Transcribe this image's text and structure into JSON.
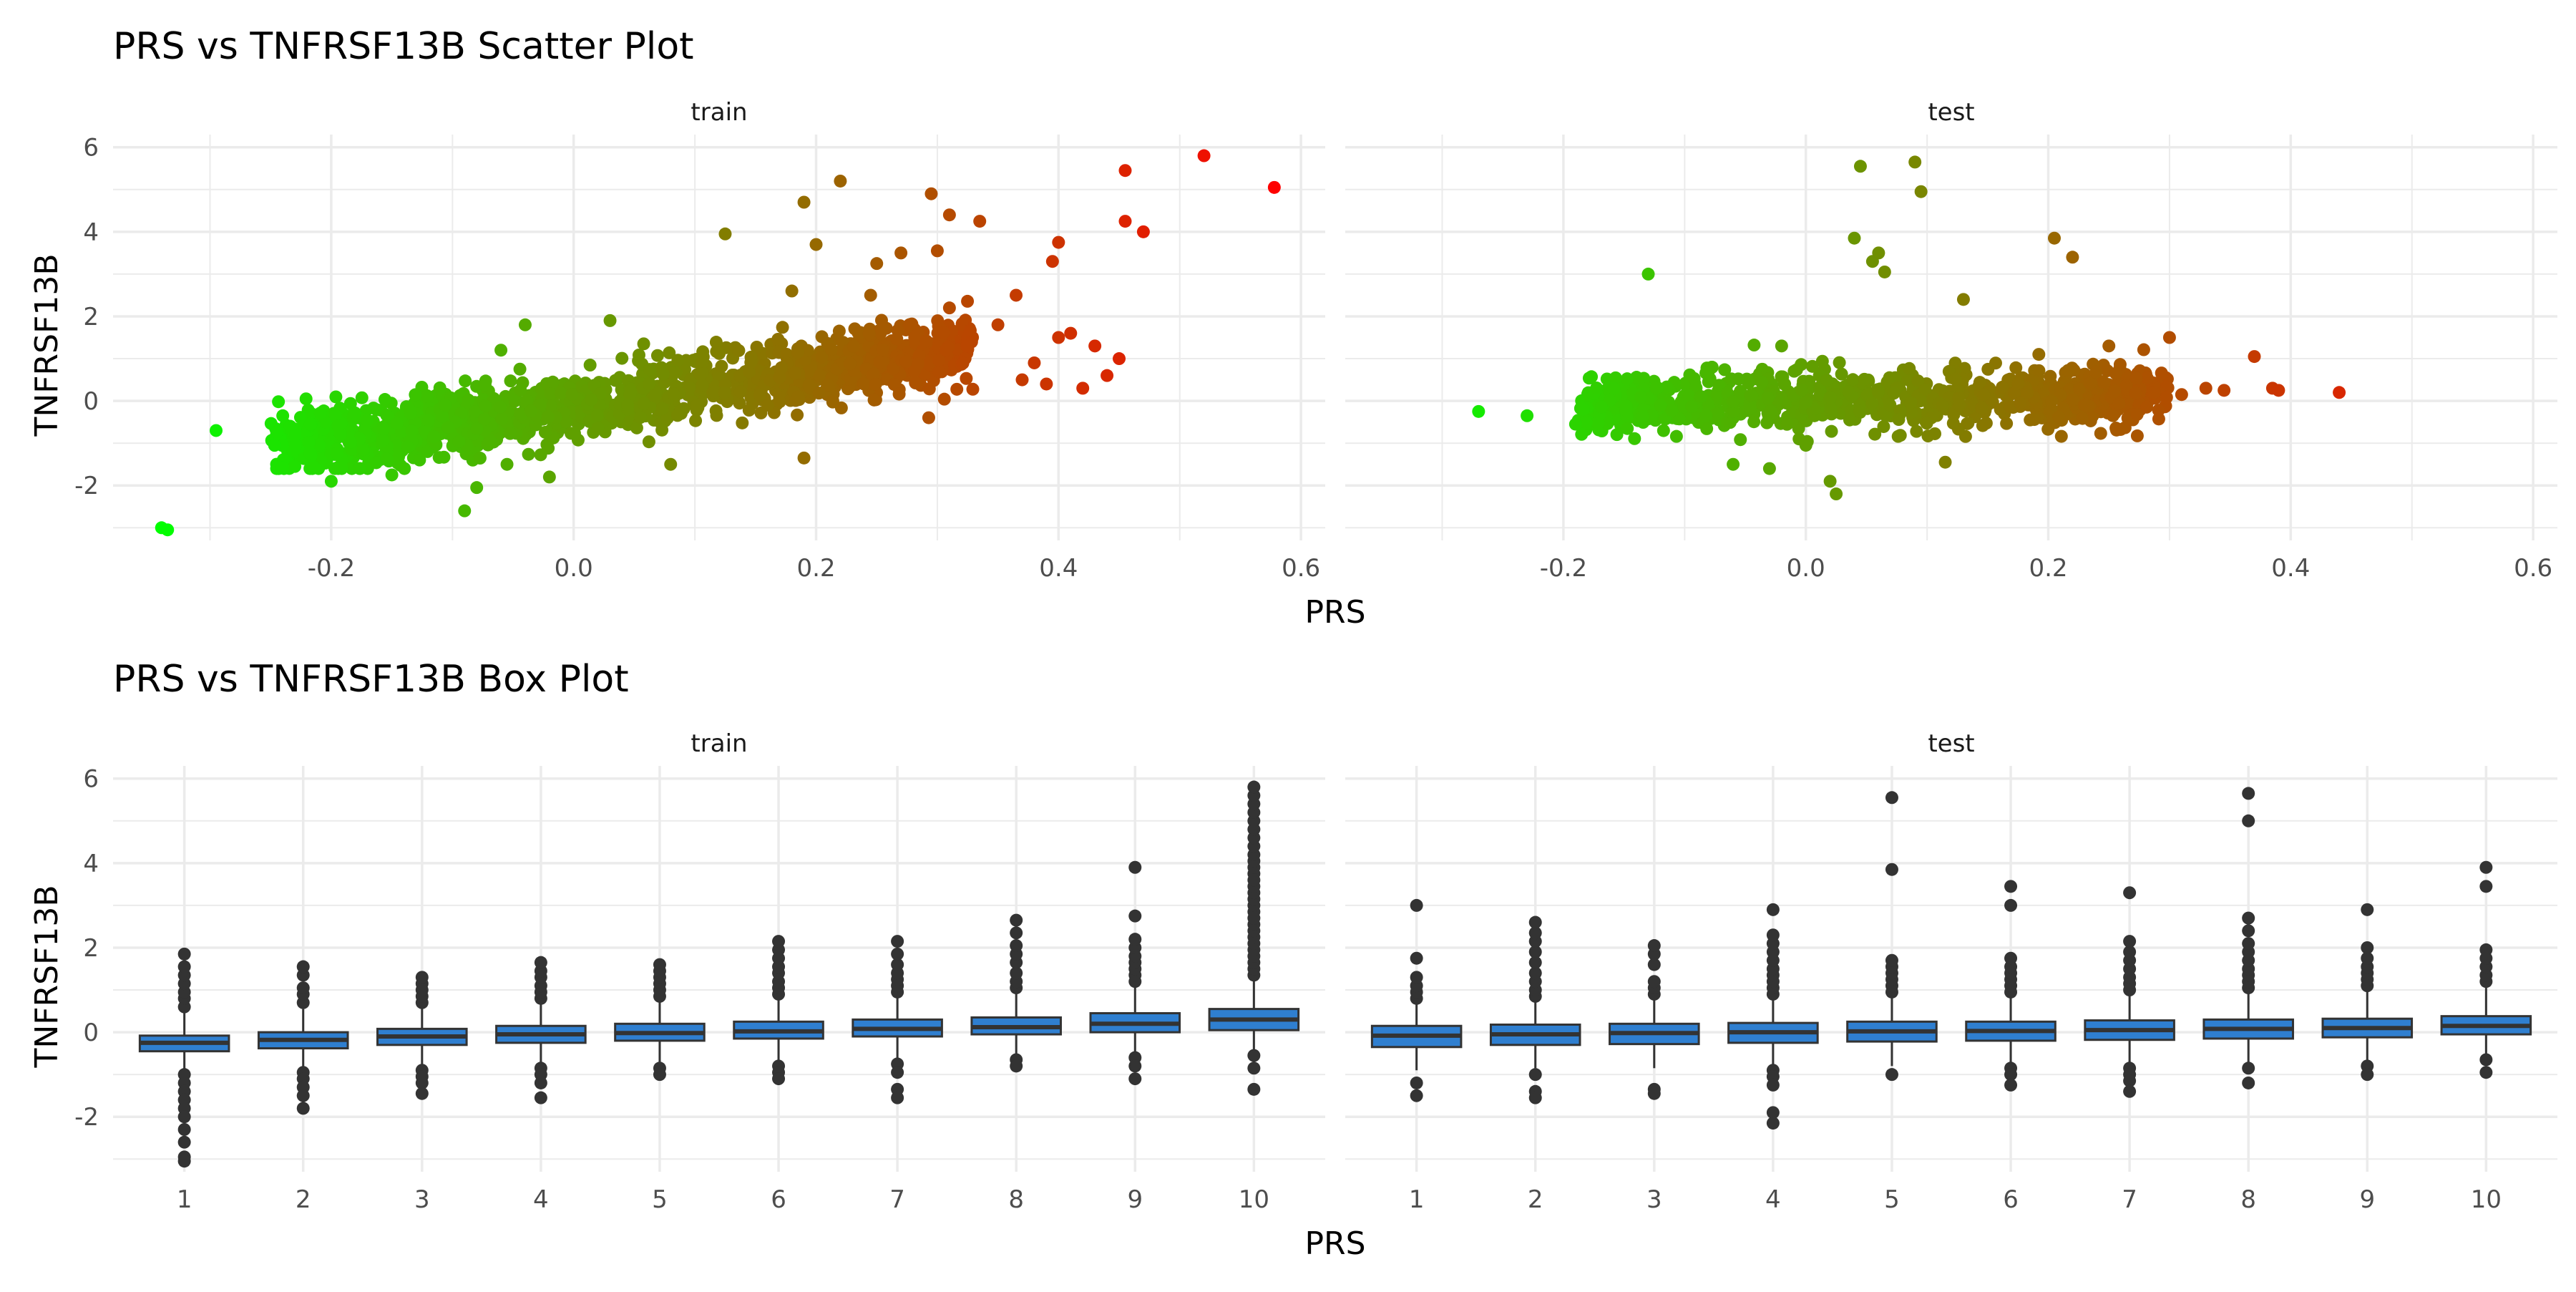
{
  "colors": {
    "panel_grid": "#ebebeb",
    "box_fill": "#2f7fd0",
    "box_line": "#333333",
    "outlier": "#333333",
    "title": "#000000",
    "axis_text": "#4d4d4d",
    "gradient_low": "#00ff00",
    "gradient_high": "#ff0000"
  },
  "chart_data": [
    {
      "type": "scatter",
      "title": "PRS vs TNFRSF13B Scatter Plot",
      "xlabel": "PRS",
      "ylabel": "TNFRSF13B",
      "color_by": "PRS",
      "color_scale": [
        "#00ff00",
        "#ff0000"
      ],
      "xlim": [
        -0.38,
        0.62
      ],
      "ylim": [
        -3.3,
        6.3
      ],
      "x_ticks": [
        -0.2,
        0.0,
        0.2,
        0.4,
        0.6
      ],
      "x_tick_labels": [
        "-0.2",
        "0.0",
        "0.2",
        "0.4",
        "0.6"
      ],
      "y_ticks": [
        -2,
        0,
        2,
        4,
        6
      ],
      "y_tick_labels": [
        "-2",
        "0",
        "2",
        "4",
        "6"
      ],
      "grid": true,
      "legend": "none",
      "facets": [
        {
          "name": "train",
          "cloud": {
            "x_range": [
              -0.25,
              0.33
            ],
            "slope": 4.0,
            "intercept": -0.1,
            "spread": 0.55,
            "n": 1400
          },
          "points": [
            [
              -0.34,
              -3.0
            ],
            [
              -0.335,
              -3.05
            ],
            [
              -0.295,
              -0.7
            ],
            [
              -0.24,
              -0.35
            ],
            [
              -0.23,
              -0.8
            ],
            [
              -0.23,
              -1.55
            ],
            [
              -0.2,
              -1.9
            ],
            [
              -0.15,
              -1.75
            ],
            [
              -0.09,
              -2.6
            ],
            [
              -0.08,
              -2.05
            ],
            [
              -0.055,
              -1.5
            ],
            [
              -0.02,
              -1.8
            ],
            [
              -0.06,
              1.2
            ],
            [
              -0.04,
              1.8
            ],
            [
              0.03,
              1.9
            ],
            [
              0.08,
              -1.5
            ],
            [
              0.19,
              -1.35
            ],
            [
              0.125,
              3.95
            ],
            [
              0.19,
              4.7
            ],
            [
              0.22,
              5.2
            ],
            [
              0.2,
              3.7
            ],
            [
              0.18,
              2.6
            ],
            [
              0.245,
              2.5
            ],
            [
              0.25,
              3.25
            ],
            [
              0.27,
              3.5
            ],
            [
              0.295,
              4.9
            ],
            [
              0.31,
              4.4
            ],
            [
              0.335,
              4.25
            ],
            [
              0.3,
              3.55
            ],
            [
              0.31,
              2.2
            ],
            [
              0.365,
              2.5
            ],
            [
              0.35,
              1.8
            ],
            [
              0.38,
              0.9
            ],
            [
              0.39,
              0.4
            ],
            [
              0.4,
              1.5
            ],
            [
              0.41,
              1.6
            ],
            [
              0.395,
              3.3
            ],
            [
              0.4,
              3.75
            ],
            [
              0.37,
              0.5
            ],
            [
              0.42,
              0.3
            ],
            [
              0.43,
              1.3
            ],
            [
              0.45,
              1.0
            ],
            [
              0.455,
              4.25
            ],
            [
              0.455,
              5.45
            ],
            [
              0.47,
              4.0
            ],
            [
              0.44,
              0.6
            ],
            [
              0.52,
              5.8
            ],
            [
              0.578,
              5.05
            ]
          ]
        },
        {
          "name": "test",
          "cloud": {
            "x_range": [
              -0.19,
              0.3
            ],
            "slope": 0.6,
            "intercept": 0.0,
            "spread": 0.5,
            "n": 900
          },
          "points": [
            [
              -0.27,
              -0.25
            ],
            [
              -0.23,
              -0.35
            ],
            [
              -0.19,
              -0.55
            ],
            [
              -0.13,
              3.0
            ],
            [
              -0.06,
              -1.5
            ],
            [
              -0.03,
              -1.6
            ],
            [
              -0.02,
              1.3
            ],
            [
              0.0,
              -1.05
            ],
            [
              0.02,
              -1.9
            ],
            [
              0.025,
              -2.2
            ],
            [
              0.04,
              3.85
            ],
            [
              0.045,
              5.55
            ],
            [
              0.055,
              3.3
            ],
            [
              0.06,
              3.5
            ],
            [
              0.065,
              3.05
            ],
            [
              0.09,
              5.65
            ],
            [
              0.095,
              4.95
            ],
            [
              0.13,
              2.4
            ],
            [
              0.115,
              -1.45
            ],
            [
              0.205,
              3.85
            ],
            [
              0.22,
              3.4
            ],
            [
              0.25,
              1.3
            ],
            [
              0.3,
              1.5
            ],
            [
              0.31,
              0.15
            ],
            [
              0.33,
              0.3
            ],
            [
              0.345,
              0.25
            ],
            [
              0.37,
              1.05
            ],
            [
              0.385,
              0.3
            ],
            [
              0.39,
              0.25
            ],
            [
              0.44,
              0.2
            ]
          ]
        }
      ]
    },
    {
      "type": "box",
      "title": "PRS vs TNFRSF13B Box Plot",
      "xlabel": "PRS",
      "ylabel": "TNFRSF13B",
      "categories": [
        "1",
        "2",
        "3",
        "4",
        "5",
        "6",
        "7",
        "8",
        "9",
        "10"
      ],
      "ylim": [
        -3.3,
        6.3
      ],
      "y_ticks": [
        -2,
        0,
        2,
        4,
        6
      ],
      "y_tick_labels": [
        "-2",
        "0",
        "2",
        "4",
        "6"
      ],
      "grid": true,
      "legend": "none",
      "facets": [
        {
          "name": "train",
          "boxes": [
            {
              "q1": -0.45,
              "median": -0.25,
              "q3": -0.08,
              "wlo": -0.95,
              "whi": 0.45,
              "out": [
                0.6,
                0.8,
                0.95,
                1.15,
                1.35,
                1.55,
                1.85,
                -1.0,
                -1.2,
                -1.4,
                -1.6,
                -1.8,
                -2.0,
                -2.3,
                -2.6,
                -2.95,
                -3.05
              ]
            },
            {
              "q1": -0.38,
              "median": -0.18,
              "q3": 0.0,
              "wlo": -0.88,
              "whi": 0.55,
              "out": [
                0.7,
                0.9,
                1.05,
                1.35,
                1.55,
                -0.95,
                -1.1,
                -1.3,
                -1.5,
                -1.8
              ]
            },
            {
              "q1": -0.3,
              "median": -0.1,
              "q3": 0.08,
              "wlo": -0.8,
              "whi": 0.6,
              "out": [
                0.7,
                0.85,
                1.0,
                1.15,
                1.3,
                -0.9,
                -1.05,
                -1.2,
                -1.45
              ]
            },
            {
              "q1": -0.25,
              "median": -0.05,
              "q3": 0.15,
              "wlo": -0.75,
              "whi": 0.7,
              "out": [
                0.8,
                0.95,
                1.1,
                1.3,
                1.45,
                1.65,
                -0.85,
                -1.0,
                -1.2,
                -1.55
              ]
            },
            {
              "q1": -0.2,
              "median": -0.02,
              "q3": 0.2,
              "wlo": -0.7,
              "whi": 0.75,
              "out": [
                0.85,
                1.0,
                1.15,
                1.3,
                1.45,
                1.6,
                -0.85,
                -1.0
              ]
            },
            {
              "q1": -0.15,
              "median": 0.02,
              "q3": 0.25,
              "wlo": -0.65,
              "whi": 0.8,
              "out": [
                0.9,
                1.05,
                1.2,
                1.4,
                1.55,
                1.75,
                1.95,
                2.15,
                -0.8,
                -0.95,
                -1.1
              ]
            },
            {
              "q1": -0.1,
              "median": 0.08,
              "q3": 0.3,
              "wlo": -0.62,
              "whi": 0.85,
              "out": [
                0.95,
                1.1,
                1.25,
                1.4,
                1.6,
                1.85,
                2.15,
                -0.75,
                -0.95,
                -1.35,
                -1.55
              ]
            },
            {
              "q1": -0.05,
              "median": 0.12,
              "q3": 0.35,
              "wlo": -0.55,
              "whi": 0.95,
              "out": [
                1.05,
                1.2,
                1.4,
                1.65,
                1.85,
                2.05,
                2.35,
                2.65,
                -0.65,
                -0.8
              ]
            },
            {
              "q1": 0.0,
              "median": 0.2,
              "q3": 0.45,
              "wlo": -0.5,
              "whi": 1.1,
              "out": [
                1.2,
                1.35,
                1.5,
                1.65,
                1.8,
                2.0,
                2.2,
                2.75,
                3.9,
                -0.6,
                -0.8,
                -1.1
              ]
            },
            {
              "q1": 0.05,
              "median": 0.3,
              "q3": 0.55,
              "wlo": -0.45,
              "whi": 1.25,
              "out": [
                1.35,
                1.5,
                1.65,
                1.8,
                1.95,
                2.1,
                2.25,
                2.4,
                2.55,
                2.7,
                2.85,
                3.0,
                3.15,
                3.3,
                3.45,
                3.6,
                3.75,
                3.9,
                4.05,
                4.2,
                4.4,
                4.6,
                4.8,
                5.0,
                5.2,
                5.4,
                5.6,
                5.8,
                -0.55,
                -0.85,
                -1.35
              ]
            }
          ]
        },
        {
          "name": "test",
          "boxes": [
            {
              "q1": -0.35,
              "median": -0.08,
              "q3": 0.15,
              "wlo": -0.9,
              "whi": 0.7,
              "out": [
                0.8,
                0.95,
                1.1,
                1.3,
                1.75,
                3.0,
                -1.2,
                -1.5
              ]
            },
            {
              "q1": -0.3,
              "median": -0.05,
              "q3": 0.18,
              "wlo": -0.85,
              "whi": 0.75,
              "out": [
                0.85,
                1.0,
                1.2,
                1.4,
                1.65,
                1.9,
                2.15,
                2.35,
                2.6,
                -1.0,
                -1.4,
                -1.55
              ]
            },
            {
              "q1": -0.28,
              "median": -0.02,
              "q3": 0.2,
              "wlo": -0.85,
              "whi": 0.8,
              "out": [
                0.9,
                1.05,
                1.2,
                1.6,
                1.85,
                2.05,
                -1.35,
                -1.45
              ]
            },
            {
              "q1": -0.25,
              "median": 0.0,
              "q3": 0.22,
              "wlo": -0.8,
              "whi": 0.8,
              "out": [
                0.9,
                1.05,
                1.2,
                1.35,
                1.5,
                1.7,
                1.9,
                2.1,
                2.3,
                2.9,
                -0.9,
                -1.05,
                -1.25,
                -1.9,
                -2.15
              ]
            },
            {
              "q1": -0.22,
              "median": 0.02,
              "q3": 0.25,
              "wlo": -0.8,
              "whi": 0.85,
              "out": [
                0.95,
                1.1,
                1.25,
                1.4,
                1.55,
                1.7,
                3.85,
                5.55,
                -1.0
              ]
            },
            {
              "q1": -0.2,
              "median": 0.03,
              "q3": 0.25,
              "wlo": -0.78,
              "whi": 0.85,
              "out": [
                0.95,
                1.1,
                1.25,
                1.4,
                1.55,
                1.75,
                3.0,
                3.45,
                -0.85,
                -1.0,
                -1.25
              ]
            },
            {
              "q1": -0.18,
              "median": 0.05,
              "q3": 0.28,
              "wlo": -0.75,
              "whi": 0.9,
              "out": [
                1.0,
                1.15,
                1.3,
                1.5,
                1.7,
                1.9,
                2.15,
                3.3,
                -0.85,
                -1.0,
                -1.15,
                -1.4
              ]
            },
            {
              "q1": -0.15,
              "median": 0.08,
              "q3": 0.3,
              "wlo": -0.72,
              "whi": 0.95,
              "out": [
                1.05,
                1.2,
                1.35,
                1.5,
                1.7,
                1.9,
                2.1,
                2.4,
                2.7,
                5.0,
                5.65,
                -0.85,
                -1.2
              ]
            },
            {
              "q1": -0.12,
              "median": 0.1,
              "q3": 0.32,
              "wlo": -0.7,
              "whi": 1.0,
              "out": [
                1.1,
                1.25,
                1.4,
                1.55,
                1.75,
                2.0,
                2.9,
                -0.8,
                -1.0
              ]
            },
            {
              "q1": -0.05,
              "median": 0.15,
              "q3": 0.38,
              "wlo": -0.6,
              "whi": 1.05,
              "out": [
                1.2,
                1.35,
                1.55,
                1.75,
                1.95,
                3.45,
                3.9,
                -0.65,
                -0.95
              ]
            }
          ]
        }
      ]
    }
  ]
}
